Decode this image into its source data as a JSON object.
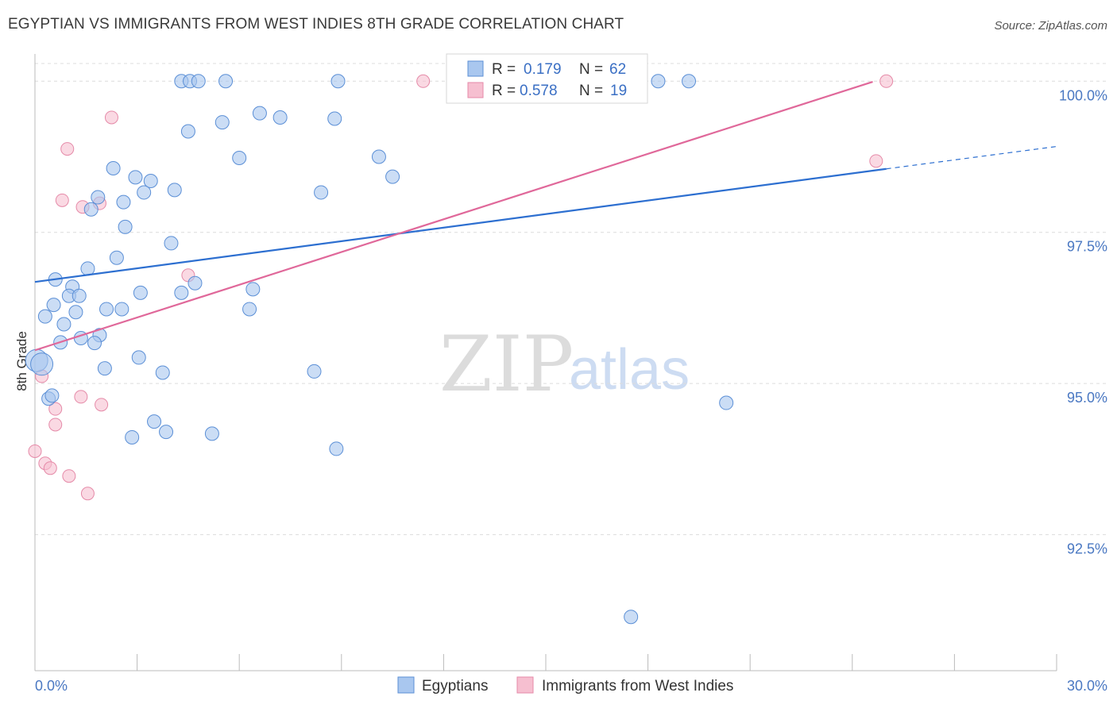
{
  "header": {
    "title": "EGYPTIAN VS IMMIGRANTS FROM WEST INDIES 8TH GRADE CORRELATION CHART",
    "source": "Source: ZipAtlas.com"
  },
  "watermark": {
    "zip": "ZIP",
    "atlas": "atlas"
  },
  "colors": {
    "blue_fill": "#a9c7ef",
    "blue_stroke": "#5b8fd6",
    "blue_line": "#2d6fd0",
    "pink_fill": "#f6bfd0",
    "pink_stroke": "#e58aa8",
    "pink_line": "#e0689a",
    "grid": "#dcdcdc",
    "tick_text": "#4a78c2"
  },
  "legend": {
    "rows": [
      {
        "r_label": "R =",
        "r_value": "0.179",
        "n_label": "N =",
        "n_value": "62"
      },
      {
        "r_label": "R =",
        "r_value": "0.578",
        "n_label": "N =",
        "n_value": "19"
      }
    ]
  },
  "bottom_legend": {
    "series1": "Egyptians",
    "series2": "Immigrants from West Indies"
  },
  "chart_data": {
    "type": "scatter",
    "title": "EGYPTIAN VS IMMIGRANTS FROM WEST INDIES 8TH GRADE CORRELATION CHART",
    "xlabel": "",
    "ylabel": "8th Grade",
    "xlim": [
      0.0,
      30.0
    ],
    "ylim": [
      90.25,
      100.45
    ],
    "x_tick_labels": [
      "0.0%",
      "30.0%"
    ],
    "y_ticks": [
      92.5,
      95.0,
      97.5,
      100.0
    ],
    "y_tick_labels": [
      "92.5%",
      "95.0%",
      "97.5%",
      "100.0%"
    ],
    "grid": true,
    "legend_position": "top-center",
    "series": [
      {
        "name": "Egyptians",
        "R": 0.179,
        "N": 62,
        "trend": {
          "x": [
            0.0,
            25.0
          ],
          "y": [
            96.68,
            98.55
          ],
          "dashed_to": [
            30.0,
            98.92
          ]
        },
        "points": [
          [
            4.3,
            100.0
          ],
          [
            4.55,
            100.0
          ],
          [
            4.8,
            100.0
          ],
          [
            5.6,
            100.0
          ],
          [
            8.9,
            100.0
          ],
          [
            18.3,
            100.0
          ],
          [
            19.2,
            100.0
          ],
          [
            6.6,
            99.47
          ],
          [
            7.2,
            99.4
          ],
          [
            8.8,
            99.38
          ],
          [
            5.5,
            99.32
          ],
          [
            4.5,
            99.17
          ],
          [
            6.0,
            98.73
          ],
          [
            10.1,
            98.75
          ],
          [
            2.3,
            98.56
          ],
          [
            2.95,
            98.41
          ],
          [
            3.4,
            98.35
          ],
          [
            4.1,
            98.2
          ],
          [
            3.2,
            98.16
          ],
          [
            8.4,
            98.16
          ],
          [
            10.5,
            98.42
          ],
          [
            1.85,
            98.08
          ],
          [
            2.6,
            98.0
          ],
          [
            1.65,
            97.88
          ],
          [
            2.65,
            97.59
          ],
          [
            4.0,
            97.32
          ],
          [
            2.4,
            97.08
          ],
          [
            1.55,
            96.9
          ],
          [
            0.6,
            96.72
          ],
          [
            1.1,
            96.6
          ],
          [
            1.0,
            96.45
          ],
          [
            1.3,
            96.45
          ],
          [
            3.1,
            96.5
          ],
          [
            4.3,
            96.5
          ],
          [
            4.7,
            96.66
          ],
          [
            6.4,
            96.56
          ],
          [
            0.55,
            96.3
          ],
          [
            1.2,
            96.18
          ],
          [
            2.1,
            96.23
          ],
          [
            2.55,
            96.23
          ],
          [
            6.3,
            96.23
          ],
          [
            0.3,
            96.11
          ],
          [
            0.85,
            95.98
          ],
          [
            1.9,
            95.8
          ],
          [
            1.35,
            95.75
          ],
          [
            1.75,
            95.67
          ],
          [
            0.75,
            95.68
          ],
          [
            3.05,
            95.43
          ],
          [
            0.05,
            95.38
          ],
          [
            0.2,
            95.32
          ],
          [
            2.05,
            95.25
          ],
          [
            3.75,
            95.18
          ],
          [
            8.2,
            95.2
          ],
          [
            0.4,
            94.75
          ],
          [
            20.3,
            94.68
          ],
          [
            3.5,
            94.37
          ],
          [
            3.85,
            94.2
          ],
          [
            5.2,
            94.17
          ],
          [
            2.85,
            94.11
          ],
          [
            8.85,
            93.92
          ],
          [
            17.5,
            91.14
          ],
          [
            0.5,
            94.8
          ]
        ]
      },
      {
        "name": "Immigrants from West Indies",
        "R": 0.578,
        "N": 19,
        "trend": {
          "x": [
            0.0,
            24.6
          ],
          "y": [
            95.55,
            99.99
          ]
        },
        "points": [
          [
            11.4,
            100.0
          ],
          [
            25.0,
            100.0
          ],
          [
            2.25,
            99.4
          ],
          [
            0.95,
            98.88
          ],
          [
            0.8,
            98.03
          ],
          [
            1.4,
            97.92
          ],
          [
            1.9,
            97.98
          ],
          [
            4.5,
            96.79
          ],
          [
            24.7,
            98.68
          ],
          [
            0.2,
            95.12
          ],
          [
            0.6,
            94.58
          ],
          [
            1.35,
            94.78
          ],
          [
            1.95,
            94.65
          ],
          [
            0.6,
            94.32
          ],
          [
            0.0,
            93.88
          ],
          [
            0.3,
            93.68
          ],
          [
            0.45,
            93.6
          ],
          [
            1.0,
            93.47
          ],
          [
            1.55,
            93.18
          ]
        ]
      }
    ]
  }
}
